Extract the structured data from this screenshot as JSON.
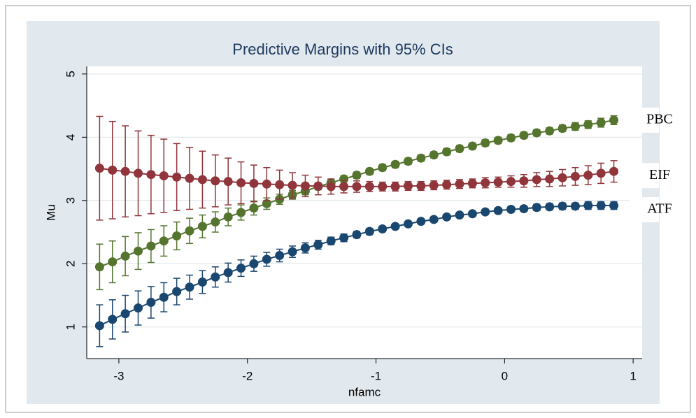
{
  "chart_data": {
    "type": "errorbar-line",
    "title": "Predictive Margins with 95% CIs",
    "x_label": "nfamc",
    "y_label": "Mu",
    "xlim": [
      -3.25,
      1.07
    ],
    "ylim": [
      0.5,
      5.12
    ],
    "xticks": [
      -3,
      -2,
      -1,
      0,
      1
    ],
    "yticks": [
      1,
      2,
      3,
      4,
      5
    ],
    "grid": true,
    "x": [
      -3.15,
      -3.05,
      -2.95,
      -2.85,
      -2.75,
      -2.65,
      -2.55,
      -2.45,
      -2.35,
      -2.25,
      -2.15,
      -2.05,
      -1.95,
      -1.85,
      -1.75,
      -1.65,
      -1.55,
      -1.45,
      -1.35,
      -1.25,
      -1.15,
      -1.05,
      -0.95,
      -0.85,
      -0.75,
      -0.65,
      -0.55,
      -0.45,
      -0.35,
      -0.25,
      -0.15,
      -0.05,
      0.05,
      0.15,
      0.25,
      0.35,
      0.45,
      0.55,
      0.65,
      0.75,
      0.85
    ],
    "series": [
      {
        "name": "PBC",
        "color": "#55752f",
        "values": [
          1.95,
          2.03,
          2.12,
          2.2,
          2.28,
          2.36,
          2.44,
          2.52,
          2.59,
          2.66,
          2.74,
          2.81,
          2.88,
          2.95,
          3.02,
          3.09,
          3.15,
          3.22,
          3.28,
          3.34,
          3.4,
          3.46,
          3.52,
          3.57,
          3.62,
          3.67,
          3.72,
          3.77,
          3.82,
          3.86,
          3.91,
          3.95,
          3.99,
          4.03,
          4.07,
          4.1,
          4.14,
          4.17,
          4.2,
          4.23,
          4.27
        ],
        "errors": [
          0.36,
          0.33,
          0.31,
          0.29,
          0.26,
          0.24,
          0.22,
          0.2,
          0.18,
          0.16,
          0.14,
          0.12,
          0.11,
          0.09,
          0.08,
          0.07,
          0.06,
          0.05,
          0.05,
          0.05,
          0.05,
          0.05,
          0.05,
          0.05,
          0.05,
          0.05,
          0.05,
          0.05,
          0.05,
          0.05,
          0.05,
          0.05,
          0.05,
          0.05,
          0.05,
          0.05,
          0.05,
          0.06,
          0.06,
          0.07,
          0.07
        ]
      },
      {
        "name": "EIF",
        "color": "#90353b",
        "values": [
          3.51,
          3.48,
          3.46,
          3.43,
          3.41,
          3.39,
          3.37,
          3.35,
          3.33,
          3.31,
          3.3,
          3.28,
          3.27,
          3.26,
          3.25,
          3.24,
          3.23,
          3.23,
          3.22,
          3.22,
          3.22,
          3.22,
          3.22,
          3.22,
          3.23,
          3.23,
          3.24,
          3.25,
          3.26,
          3.27,
          3.28,
          3.29,
          3.3,
          3.31,
          3.33,
          3.34,
          3.36,
          3.38,
          3.4,
          3.43,
          3.46
        ],
        "errors": [
          0.82,
          0.77,
          0.72,
          0.67,
          0.62,
          0.58,
          0.53,
          0.49,
          0.45,
          0.41,
          0.37,
          0.33,
          0.29,
          0.26,
          0.23,
          0.2,
          0.17,
          0.14,
          0.12,
          0.1,
          0.09,
          0.08,
          0.07,
          0.07,
          0.07,
          0.07,
          0.07,
          0.07,
          0.07,
          0.07,
          0.08,
          0.08,
          0.09,
          0.1,
          0.11,
          0.12,
          0.13,
          0.14,
          0.15,
          0.16,
          0.17
        ]
      },
      {
        "name": "ATF",
        "color": "#1a476f",
        "values": [
          1.02,
          1.12,
          1.21,
          1.3,
          1.39,
          1.47,
          1.56,
          1.63,
          1.71,
          1.79,
          1.86,
          1.93,
          2.0,
          2.07,
          2.13,
          2.19,
          2.25,
          2.3,
          2.36,
          2.41,
          2.46,
          2.51,
          2.55,
          2.59,
          2.63,
          2.67,
          2.7,
          2.74,
          2.77,
          2.79,
          2.82,
          2.84,
          2.86,
          2.87,
          2.89,
          2.9,
          2.91,
          2.91,
          2.92,
          2.92,
          2.92
        ],
        "errors": [
          0.33,
          0.31,
          0.29,
          0.27,
          0.25,
          0.23,
          0.21,
          0.19,
          0.18,
          0.16,
          0.15,
          0.13,
          0.12,
          0.11,
          0.1,
          0.09,
          0.08,
          0.07,
          0.06,
          0.06,
          0.05,
          0.05,
          0.04,
          0.04,
          0.04,
          0.04,
          0.04,
          0.04,
          0.04,
          0.04,
          0.04,
          0.04,
          0.04,
          0.04,
          0.05,
          0.05,
          0.05,
          0.05,
          0.06,
          0.06,
          0.06
        ]
      }
    ]
  }
}
